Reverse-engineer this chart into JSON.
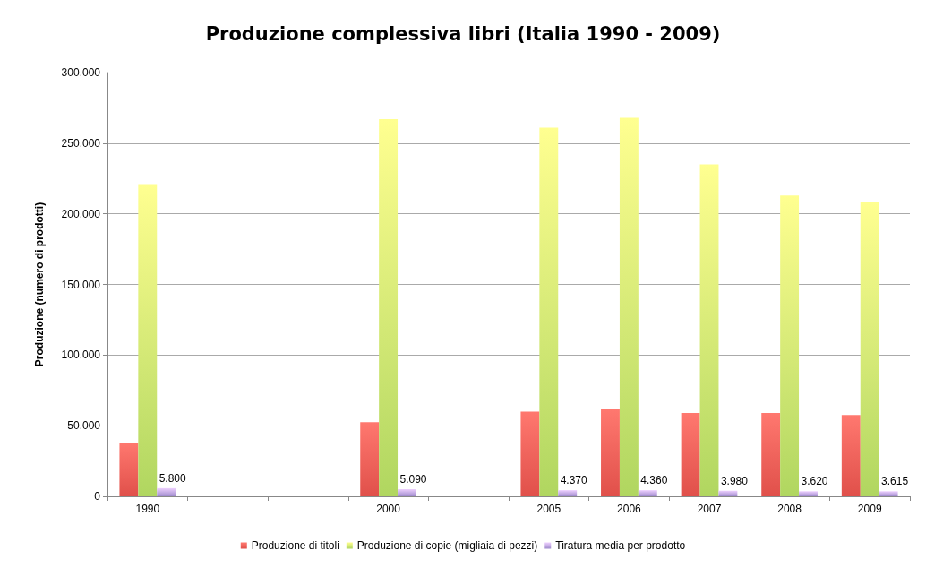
{
  "chart_data": {
    "type": "bar",
    "title": "Produzione complessiva libri (Italia 1990 - 2009)",
    "ylabel": "Produzione (numero di prodotti)",
    "categories": [
      "1990",
      null,
      null,
      "2000",
      null,
      "2005",
      "2006",
      "2007",
      "2008",
      "2009"
    ],
    "series": [
      {
        "name": "Produzione di titoli",
        "color": "#e0504a",
        "values": [
          38000,
          null,
          null,
          52500,
          null,
          60000,
          61500,
          59000,
          59000,
          57500
        ]
      },
      {
        "name": "Produzione di copie (migliaia di pezzi)",
        "color": "#b0d660",
        "values": [
          221000,
          null,
          null,
          267000,
          null,
          261000,
          268000,
          235000,
          213000,
          208000
        ]
      },
      {
        "name": "Tiratura media per prodotto",
        "color": "#9f8bcc",
        "values": [
          5800,
          null,
          null,
          5090,
          null,
          4370,
          4360,
          3980,
          3620,
          3615
        ],
        "value_labels": [
          "5.800",
          null,
          null,
          "5.090",
          null,
          "4.370",
          "4.360",
          "3.980",
          "3.620",
          "3.615"
        ]
      }
    ],
    "ylim": [
      0,
      300000
    ],
    "yticks": [
      {
        "value": 0,
        "label": "0"
      },
      {
        "value": 50000,
        "label": "50.000"
      },
      {
        "value": 100000,
        "label": "100.000"
      },
      {
        "value": 150000,
        "label": "150.000"
      },
      {
        "value": 200000,
        "label": "200.000"
      },
      {
        "value": 250000,
        "label": "250.000"
      },
      {
        "value": 300000,
        "label": "300.000"
      }
    ],
    "grid": "y",
    "legend": "bottom"
  }
}
